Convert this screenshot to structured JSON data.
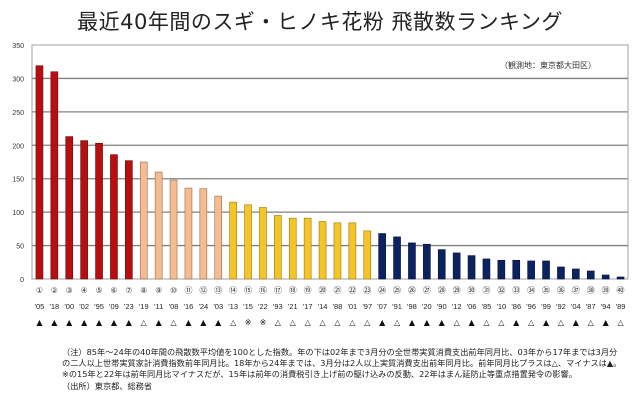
{
  "title": "最近40年間のスギ・ヒノキ花粉 飛散数ランキング",
  "observation_note": "（観測地：東京都大田区）",
  "colors": {
    "rank_1_7": "#B70E10",
    "rank_8_13": "#F4BC92",
    "rank_14_23": "#F5C426",
    "rank_24_40": "#0D2260",
    "grid": "#808080"
  },
  "chart_data": {
    "type": "bar",
    "title": "最近40年間のスギ・ヒノキ花粉 飛散数ランキング",
    "xlabel": "",
    "ylabel": "",
    "ylim": [
      0,
      350
    ],
    "yticks": [
      0,
      50,
      100,
      150,
      200,
      250,
      300,
      350
    ],
    "grid": true,
    "ranks": [
      "①",
      "②",
      "③",
      "④",
      "⑤",
      "⑥",
      "⑦",
      "⑧",
      "⑨",
      "⑩",
      "⑪",
      "⑫",
      "⑬",
      "⑭",
      "⑮",
      "⑯",
      "⑰",
      "⑱",
      "⑲",
      "⑳",
      "㉑",
      "㉒",
      "㉓",
      "㉔",
      "㉕",
      "㉖",
      "㉗",
      "㉘",
      "㉙",
      "㉚",
      "㉛",
      "㉜",
      "㉝",
      "㉞",
      "㉟",
      "㊱",
      "㊲",
      "㊳",
      "㊴",
      "㊵"
    ],
    "categories": [
      "'05",
      "'18",
      "'00",
      "'02",
      "'95",
      "'09",
      "'23",
      "'19",
      "'11",
      "'08",
      "'16",
      "'24",
      "'03",
      "'13",
      "'15",
      "'22",
      "'93",
      "'21",
      "'17",
      "'14",
      "'88",
      "'01",
      "'97",
      "'07",
      "'91",
      "'98",
      "'20",
      "'90",
      "'12",
      "'06",
      "'85",
      "'10",
      "'86",
      "'96",
      "'99",
      "'92",
      "'04",
      "'87",
      "'94",
      "'89"
    ],
    "values": [
      319,
      310,
      213,
      207,
      203,
      186,
      177,
      175,
      160,
      148,
      136,
      135,
      124,
      115,
      111,
      107,
      95,
      91,
      91,
      86,
      84,
      84,
      72,
      68,
      63,
      54,
      52,
      44,
      39,
      35,
      30,
      28,
      28,
      27,
      27,
      18,
      15,
      12,
      6,
      3
    ],
    "color_groups": [
      "rank_1_7",
      "rank_1_7",
      "rank_1_7",
      "rank_1_7",
      "rank_1_7",
      "rank_1_7",
      "rank_1_7",
      "rank_8_13",
      "rank_8_13",
      "rank_8_13",
      "rank_8_13",
      "rank_8_13",
      "rank_8_13",
      "rank_14_23",
      "rank_14_23",
      "rank_14_23",
      "rank_14_23",
      "rank_14_23",
      "rank_14_23",
      "rank_14_23",
      "rank_14_23",
      "rank_14_23",
      "rank_14_23",
      "rank_24_40",
      "rank_24_40",
      "rank_24_40",
      "rank_24_40",
      "rank_24_40",
      "rank_24_40",
      "rank_24_40",
      "rank_24_40",
      "rank_24_40",
      "rank_24_40",
      "rank_24_40",
      "rank_24_40",
      "rank_24_40",
      "rank_24_40",
      "rank_24_40",
      "rank_24_40",
      "rank_24_40"
    ],
    "consumption_marks": [
      "▲",
      "▲",
      "▲",
      "▲",
      "▲",
      "▲",
      "▲",
      "△",
      "▲",
      "△",
      "▲",
      "▲",
      "▲",
      "△",
      "※",
      "※",
      "△",
      "△",
      "△",
      "△",
      "△",
      "△",
      "△",
      "▲",
      "△",
      "▲",
      "▲",
      "▲",
      "△",
      "▲",
      "△",
      "△",
      "▲",
      "△",
      "▲",
      "△",
      "▲",
      "△",
      "▲",
      "△"
    ]
  },
  "notes": [
    "（注）85年～24年の40年間の飛散数平均値を100とした指数。年の下は02年まで3月分の全世帯実質消費支出前年同月比、03年から17年までは3月分",
    "の二人以上世帯実質家計消費指数前年同月比。18年から24年までは、3月分は2人以上実質消費支出前年同月比。前年同月比プラスは△、マイナスは▲。",
    "※の15年と22年は前年同月比マイナスだが、15年は前年の消費税引き上げ前の駆け込みの反動、22年はまん延防止等重点措置発令の影響。",
    "（出所）東京都、総務省"
  ]
}
